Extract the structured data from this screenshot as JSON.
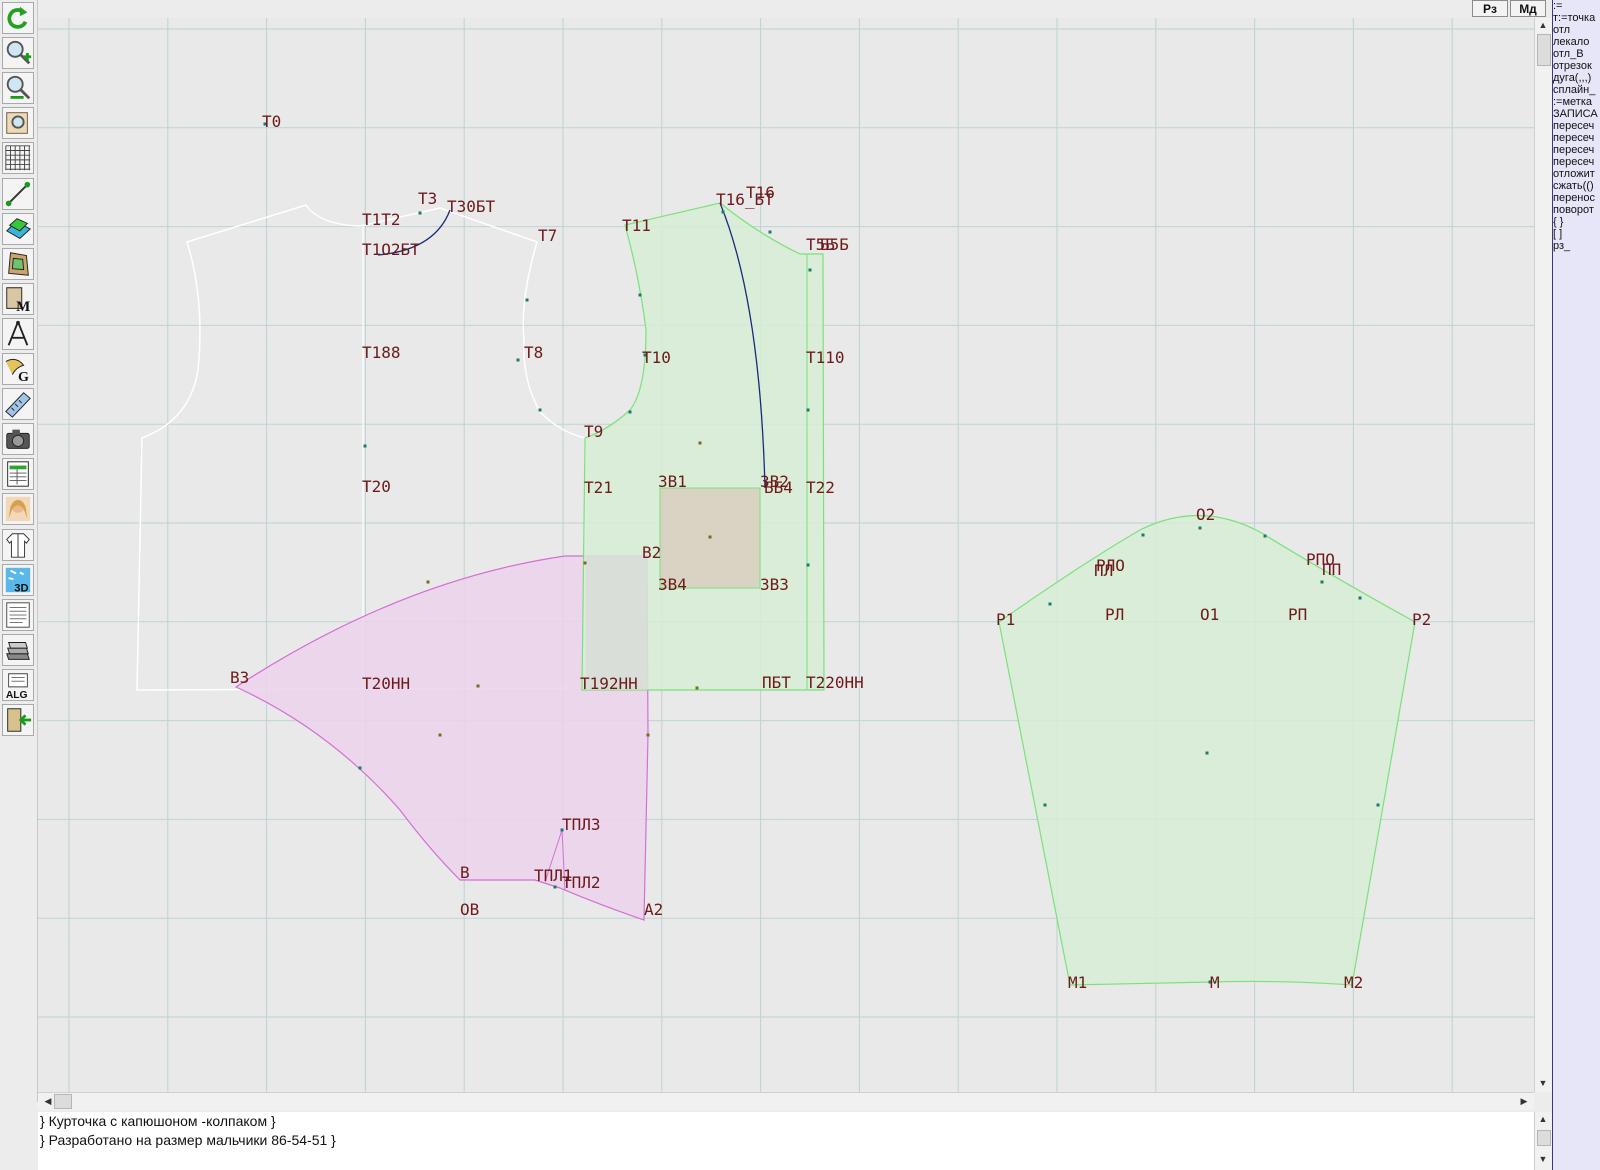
{
  "window": {
    "top_buttons": [
      "Рз",
      "Мд"
    ]
  },
  "toolbar": {
    "tools": [
      {
        "name": "refresh-icon",
        "glyph": "↻"
      },
      {
        "name": "zoom-in-icon",
        "glyph": "+"
      },
      {
        "name": "zoom-out-icon",
        "glyph": "−"
      },
      {
        "name": "zoom-page-icon",
        "glyph": ""
      },
      {
        "name": "grid-icon",
        "glyph": ""
      },
      {
        "name": "segment-tool-icon",
        "glyph": ""
      },
      {
        "name": "layers-icon",
        "glyph": ""
      },
      {
        "name": "pattern-piece-icon",
        "glyph": ""
      },
      {
        "name": "measurements-icon",
        "glyph": "M"
      },
      {
        "name": "compass-icon",
        "glyph": ""
      },
      {
        "name": "grading-icon",
        "glyph": "G"
      },
      {
        "name": "ruler-icon",
        "glyph": ""
      },
      {
        "name": "camera-icon",
        "glyph": ""
      },
      {
        "name": "table-icon",
        "glyph": ""
      },
      {
        "name": "model-photo-icon",
        "glyph": ""
      },
      {
        "name": "garment-sketch-icon",
        "glyph": ""
      },
      {
        "name": "3d-view-icon",
        "glyph": "3D"
      },
      {
        "name": "document-icon",
        "glyph": ""
      },
      {
        "name": "library-icon",
        "glyph": ""
      },
      {
        "name": "algorithm-icon",
        "glyph": "ALG"
      },
      {
        "name": "exit-icon",
        "glyph": ""
      }
    ]
  },
  "canvas": {
    "labels": {
      "t0": "Т0",
      "t3": "Т3",
      "t30bt": "Т30БТ",
      "t1t2": "Т1Т2",
      "t1o2bt": "Т1О2БТ",
      "t7": "Т7",
      "t11": "Т11",
      "t16": "Т16",
      "t16bt": "Т16_БТ",
      "t5b": "Т5Б",
      "b5b": "Б5Б",
      "t188": "Т188",
      "t8": "Т8",
      "t10": "Т10",
      "t110": "Т110",
      "t9": "Т9",
      "t20": "Т20",
      "t21": "Т21",
      "zv1": "ЗВ1",
      "zv2": "ЗВ2",
      "bb4": "ББ4",
      "t22": "Т22",
      "v2": "В2",
      "zv4": "ЗВ4",
      "zv3": "ЗВ3",
      "v3": "В3",
      "t20nn": "Т20НН",
      "t192nn": "Т192НН",
      "pbt": "ПБТ",
      "t220nn": "Т220НН",
      "tpl3": "ТПЛ3",
      "b": "В",
      "tpl1": "ТПЛ1",
      "tpl2": "ТПЛ2",
      "ov": "ОВ",
      "a2": "А2",
      "o2": "О2",
      "rpl0": "РЛО",
      "pl": "ПЛ",
      "rp0": "РПО",
      "pp": "ПП",
      "p1": "Р1",
      "rl": "РЛ",
      "o1": "О1",
      "rp": "РП",
      "p2": "Р2",
      "m1": "М1",
      "m": "М",
      "m2": "М2"
    }
  },
  "right_panel": {
    "items": [
      ":=",
      "т:=точка",
      "отл",
      "лекало",
      "отл_В",
      "отрезок",
      "дуга(,,,)",
      "сплайн_",
      ":=метка",
      "ЗАПИСА",
      "пересеч",
      "пересеч",
      "пересеч",
      "пересеч",
      "отложит",
      "сжать(()",
      "перенос",
      "поворот",
      "{ }",
      "[ ]",
      "рз_"
    ]
  },
  "console": {
    "lines": [
      "} Курточка с капюшоном -колпаком }",
      "} Разработано на размер мальчики 86-54-51 }"
    ]
  },
  "colors": {
    "grid": "#bcd4d4",
    "piece_green": "#d6edd6",
    "piece_green_stroke": "#7ae27a",
    "piece_pink": "#ecd2ec",
    "piece_pink_stroke": "#d56ed5",
    "outline_white": "#ffffff",
    "curve_navy": "#1a2a7a",
    "label": "#6e1a1a"
  }
}
